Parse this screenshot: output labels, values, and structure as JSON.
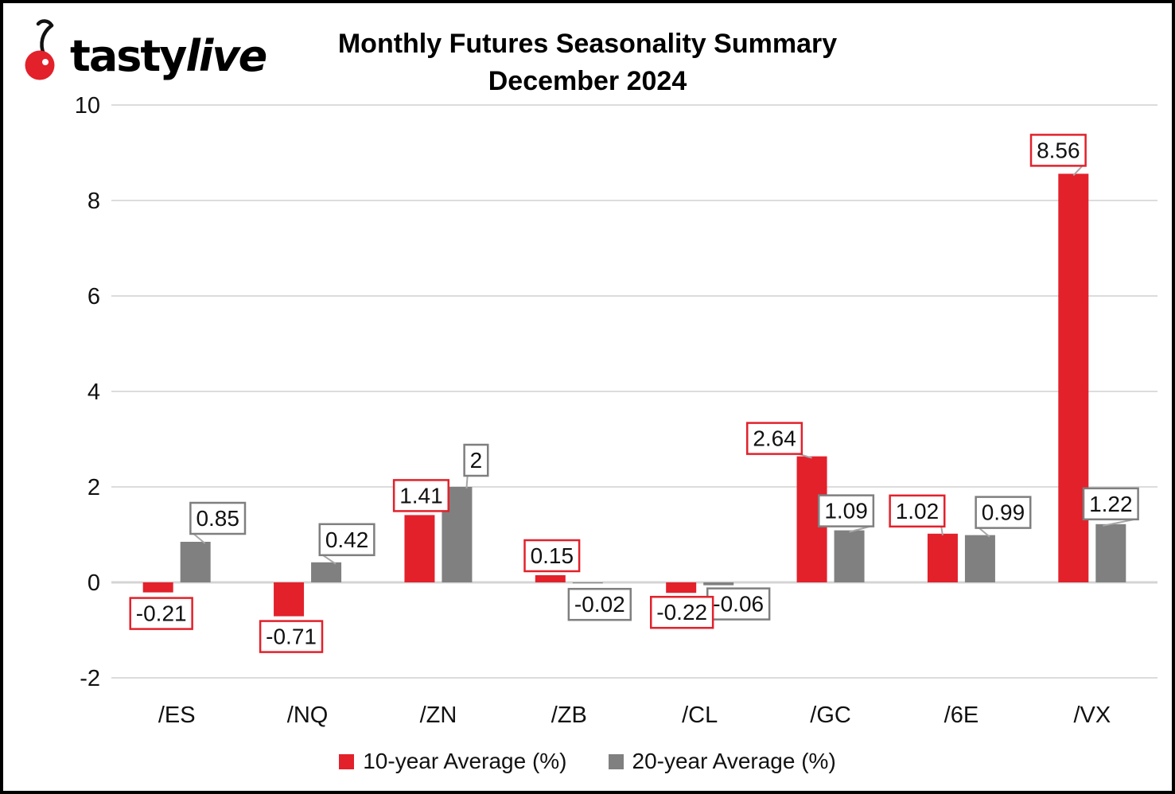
{
  "logo": {
    "brand_bold": "tasty",
    "brand_italic": "live"
  },
  "title": {
    "line1": "Monthly Futures Seasonality Summary",
    "line2": "December 2024"
  },
  "colors": {
    "red": "#e2212b",
    "gray": "#808080",
    "gray_border": "#7f7f7f",
    "gridline": "#dcdcdc",
    "zero_line": "#d4d4d4",
    "leader": "#a6a6a6",
    "text": "#111111"
  },
  "chart_data": {
    "type": "bar",
    "title": "Monthly Futures Seasonality Summary December 2024",
    "categories": [
      "/ES",
      "/NQ",
      "/ZN",
      "/ZB",
      "/CL",
      "/GC",
      "/6E",
      "/VX"
    ],
    "series": [
      {
        "name": "10-year Average (%)",
        "color_key": "red",
        "values": [
          -0.21,
          -0.71,
          1.41,
          0.15,
          -0.22,
          2.64,
          1.02,
          8.56
        ],
        "label_layout": [
          {
            "dx": 4,
            "gap": 7
          },
          {
            "dx": 3,
            "gap": 6
          },
          {
            "dx": 2,
            "gap": 5
          },
          {
            "dx": 2,
            "gap": 5
          },
          {
            "dx": 1,
            "gap": 5
          },
          {
            "dx": -47,
            "gap": 3,
            "leader": true
          },
          {
            "dx": -32,
            "gap": 9,
            "leader": true
          },
          {
            "dx": -19,
            "gap": 10,
            "leader": true
          }
        ]
      },
      {
        "name": "20-year Average (%)",
        "color_key": "gray",
        "values": [
          0.85,
          0.42,
          2,
          -0.02,
          -0.06,
          1.09,
          0.99,
          1.22
        ],
        "label_layout": [
          {
            "dx": 28,
            "gap": 10,
            "leader": true
          },
          {
            "dx": 26,
            "gap": 9,
            "leader": true
          },
          {
            "dx": 24,
            "gap": 14,
            "leader": true
          },
          {
            "dx": 15,
            "gap": 7
          },
          {
            "dx": 25,
            "gap": 4
          },
          {
            "dx": -4,
            "gap": 5,
            "leader": true
          },
          {
            "dx": 29,
            "gap": 9,
            "leader": true
          },
          {
            "dx": 0,
            "gap": 6,
            "leader": true
          }
        ]
      }
    ],
    "xlabel": "",
    "ylabel": "",
    "y_axis": {
      "min": -2,
      "max": 10,
      "step": 2,
      "ticks": [
        "-2",
        "0",
        "2",
        "4",
        "6",
        "8",
        "10"
      ]
    },
    "grid": true,
    "legend_position": "bottom",
    "data_labels_shown": true
  },
  "legend": {
    "items": [
      {
        "label": "10-year Average (%)",
        "color_key": "red"
      },
      {
        "label": "20-year Average (%)",
        "color_key": "gray"
      }
    ]
  }
}
